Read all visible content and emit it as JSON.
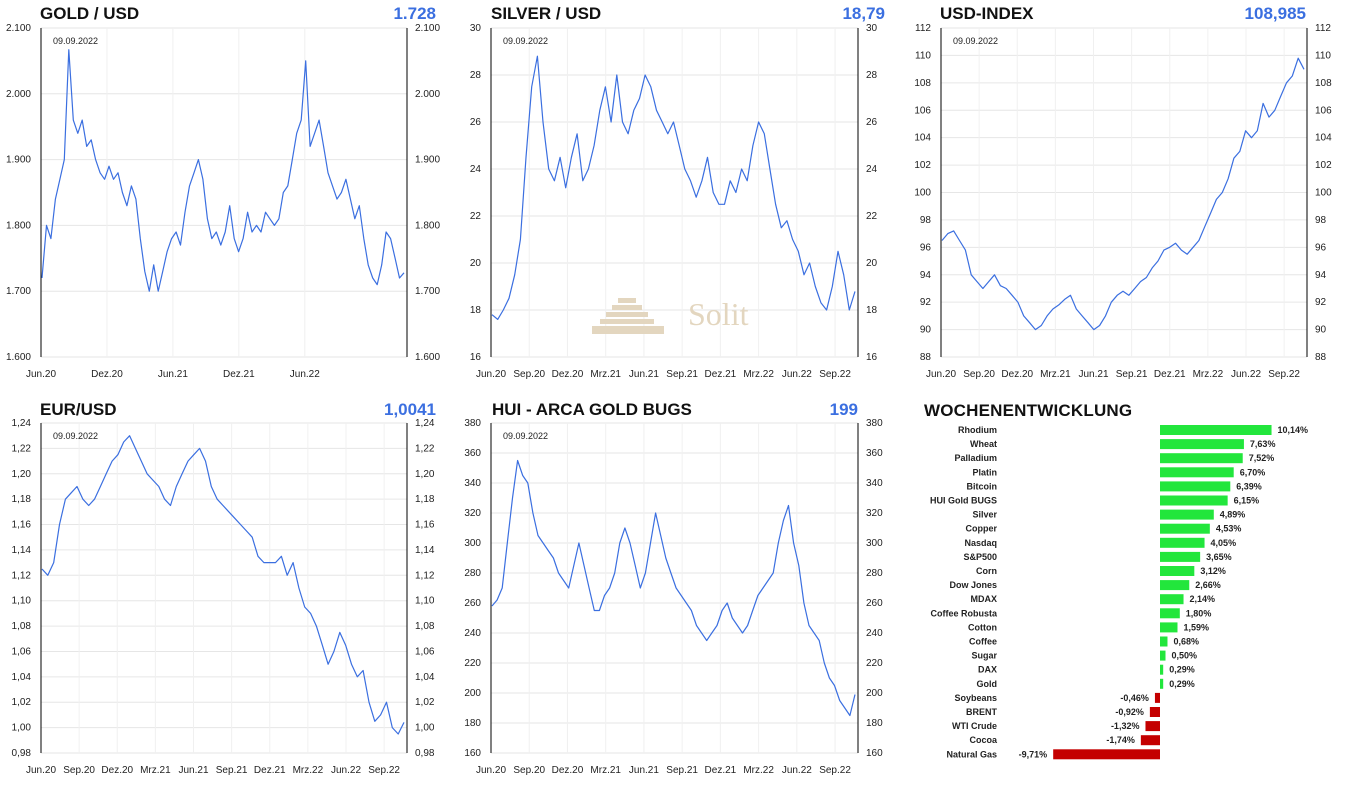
{
  "logo": {
    "text": "Solit"
  },
  "chart_data": [
    {
      "type": "line",
      "title": "GOLD / USD",
      "current_value": "1.728",
      "date": "09.09.2022",
      "y_ticks": [
        "2.100",
        "2.000",
        "1.900",
        "1.800",
        "1.700",
        "1.600"
      ],
      "ylim": [
        1600,
        2100
      ],
      "x_ticks": [
        "Jun.20",
        "Dez.20",
        "Jun.21",
        "Dez.21",
        "Jun.22"
      ],
      "series": [
        {
          "values": [
            1720,
            1800,
            1780,
            1840,
            1870,
            1900,
            2067,
            1960,
            1940,
            1960,
            1920,
            1930,
            1900,
            1880,
            1870,
            1890,
            1870,
            1880,
            1850,
            1830,
            1860,
            1840,
            1780,
            1730,
            1700,
            1740,
            1700,
            1730,
            1760,
            1780,
            1790,
            1770,
            1820,
            1860,
            1880,
            1900,
            1870,
            1810,
            1780,
            1790,
            1770,
            1790,
            1830,
            1780,
            1760,
            1780,
            1820,
            1790,
            1800,
            1790,
            1820,
            1810,
            1800,
            1810,
            1850,
            1860,
            1900,
            1940,
            1960,
            2050,
            1920,
            1940,
            1960,
            1920,
            1880,
            1860,
            1840,
            1850,
            1870,
            1840,
            1810,
            1830,
            1780,
            1740,
            1720,
            1710,
            1740,
            1790,
            1780,
            1750,
            1720,
            1728
          ]
        }
      ],
      "grid": true
    },
    {
      "type": "line",
      "title": "SILVER / USD",
      "current_value": "18,79",
      "date": "09.09.2022",
      "y_ticks": [
        "30",
        "28",
        "26",
        "24",
        "22",
        "20",
        "18",
        "16"
      ],
      "ylim": [
        16,
        30
      ],
      "x_ticks": [
        "Jun.20",
        "Sep.20",
        "Dez.20",
        "Mrz.21",
        "Jun.21",
        "Sep.21",
        "Dez.21",
        "Mrz.22",
        "Jun.22",
        "Sep.22"
      ],
      "series": [
        {
          "values": [
            17.8,
            17.6,
            18.0,
            18.5,
            19.5,
            21.0,
            24.5,
            27.5,
            28.8,
            26.0,
            24.0,
            23.5,
            24.5,
            23.2,
            24.5,
            25.5,
            23.5,
            24.0,
            25.0,
            26.5,
            27.5,
            26.0,
            28.0,
            26.0,
            25.5,
            26.5,
            27.0,
            28.0,
            27.5,
            26.5,
            26.0,
            25.5,
            26.0,
            25.0,
            24.0,
            23.5,
            22.8,
            23.5,
            24.5,
            23.0,
            22.5,
            22.5,
            23.5,
            23.0,
            24.0,
            23.5,
            25.0,
            26.0,
            25.5,
            24.0,
            22.5,
            21.5,
            21.8,
            21.0,
            20.5,
            19.5,
            20.0,
            19.0,
            18.3,
            18.0,
            19.0,
            20.5,
            19.5,
            18.0,
            18.79
          ]
        }
      ],
      "grid": true
    },
    {
      "type": "line",
      "title": "USD-INDEX",
      "current_value": "108,985",
      "date": "09.09.2022",
      "y_ticks": [
        "112",
        "110",
        "108",
        "106",
        "104",
        "102",
        "100",
        "98",
        "96",
        "94",
        "92",
        "90",
        "88"
      ],
      "ylim": [
        88,
        112
      ],
      "x_ticks": [
        "Jun.20",
        "Sep.20",
        "Dez.20",
        "Mrz.21",
        "Jun.21",
        "Sep.21",
        "Dez.21",
        "Mrz.22",
        "Jun.22",
        "Sep.22"
      ],
      "series": [
        {
          "values": [
            96.5,
            97.0,
            97.2,
            96.5,
            95.8,
            94.0,
            93.5,
            93.0,
            93.5,
            94.0,
            93.2,
            93.0,
            92.5,
            92.0,
            91.0,
            90.5,
            90.0,
            90.3,
            91.0,
            91.5,
            91.8,
            92.2,
            92.5,
            91.5,
            91.0,
            90.5,
            90.0,
            90.3,
            91.0,
            92.0,
            92.5,
            92.8,
            92.5,
            93.0,
            93.5,
            93.8,
            94.5,
            95.0,
            95.8,
            96.0,
            96.3,
            95.8,
            95.5,
            96.0,
            96.5,
            97.5,
            98.5,
            99.5,
            100.0,
            101.0,
            102.5,
            103.0,
            104.5,
            104.0,
            104.5,
            106.5,
            105.5,
            106.0,
            107.0,
            108.0,
            108.5,
            109.8,
            108.985
          ]
        }
      ],
      "grid": true
    },
    {
      "type": "line",
      "title": "EUR/USD",
      "current_value": "1,0041",
      "date": "09.09.2022",
      "y_ticks": [
        "1,24",
        "1,22",
        "1,20",
        "1,18",
        "1,16",
        "1,14",
        "1,12",
        "1,10",
        "1,08",
        "1,06",
        "1,04",
        "1,02",
        "1,00",
        "0,98"
      ],
      "ylim": [
        0.98,
        1.24
      ],
      "x_ticks": [
        "Jun.20",
        "Sep.20",
        "Dez.20",
        "Mrz.21",
        "Jun.21",
        "Sep.21",
        "Dez.21",
        "Mrz.22",
        "Jun.22",
        "Sep.22"
      ],
      "series": [
        {
          "values": [
            1.125,
            1.12,
            1.13,
            1.16,
            1.18,
            1.185,
            1.19,
            1.18,
            1.175,
            1.18,
            1.19,
            1.2,
            1.21,
            1.215,
            1.225,
            1.23,
            1.22,
            1.21,
            1.2,
            1.195,
            1.19,
            1.18,
            1.175,
            1.19,
            1.2,
            1.21,
            1.215,
            1.22,
            1.21,
            1.19,
            1.18,
            1.175,
            1.17,
            1.165,
            1.16,
            1.155,
            1.15,
            1.135,
            1.13,
            1.13,
            1.13,
            1.135,
            1.12,
            1.13,
            1.11,
            1.095,
            1.09,
            1.08,
            1.065,
            1.05,
            1.06,
            1.075,
            1.065,
            1.05,
            1.04,
            1.045,
            1.02,
            1.005,
            1.01,
            1.02,
            1.0,
            0.995,
            1.0041
          ]
        }
      ],
      "grid": true
    },
    {
      "type": "line",
      "title": "HUI - ARCA GOLD BUGS",
      "current_value": "199",
      "date": "09.09.2022",
      "y_ticks": [
        "380",
        "360",
        "340",
        "320",
        "300",
        "280",
        "260",
        "240",
        "220",
        "200",
        "180",
        "160"
      ],
      "ylim": [
        160,
        380
      ],
      "x_ticks": [
        "Jun.20",
        "Sep.20",
        "Dez.20",
        "Mrz.21",
        "Jun.21",
        "Sep.21",
        "Dez.21",
        "Mrz.22",
        "Jun.22",
        "Sep.22"
      ],
      "series": [
        {
          "values": [
            258,
            262,
            270,
            300,
            330,
            355,
            345,
            340,
            320,
            305,
            300,
            295,
            290,
            280,
            275,
            270,
            285,
            300,
            285,
            270,
            255,
            255,
            265,
            270,
            280,
            300,
            310,
            300,
            285,
            270,
            280,
            300,
            320,
            305,
            290,
            280,
            270,
            265,
            260,
            255,
            245,
            240,
            235,
            240,
            245,
            255,
            260,
            250,
            245,
            240,
            245,
            255,
            265,
            270,
            275,
            280,
            300,
            315,
            325,
            300,
            285,
            260,
            245,
            240,
            235,
            220,
            210,
            205,
            195,
            190,
            185,
            199
          ]
        }
      ],
      "grid": true
    },
    {
      "type": "bar",
      "title": "WOCHENENTWICKLUNG",
      "orientation": "horizontal",
      "categories": [
        "Rhodium",
        "Wheat",
        "Palladium",
        "Platin",
        "Bitcoin",
        "HUI Gold BUGS",
        "Silver",
        "Copper",
        "Nasdaq",
        "S&P500",
        "Corn",
        "Dow Jones",
        "MDAX",
        "Coffee Robusta",
        "Cotton",
        "Coffee",
        "Sugar",
        "DAX",
        "Gold",
        "Soybeans",
        "BRENT",
        "WTI Crude",
        "Cocoa",
        "Natural Gas"
      ],
      "values": [
        10.14,
        7.63,
        7.52,
        6.7,
        6.39,
        6.15,
        4.89,
        4.53,
        4.05,
        3.65,
        3.12,
        2.66,
        2.14,
        1.8,
        1.59,
        0.68,
        0.5,
        0.29,
        0.29,
        -0.46,
        -0.92,
        -1.32,
        -1.74,
        -9.71
      ],
      "value_labels": [
        "10,14%",
        "7,63%",
        "7,52%",
        "6,70%",
        "6,39%",
        "6,15%",
        "4,89%",
        "4,53%",
        "4,05%",
        "3,65%",
        "3,12%",
        "2,66%",
        "2,14%",
        "1,80%",
        "1,59%",
        "0,68%",
        "0,50%",
        "0,29%",
        "0,29%",
        "-0,46%",
        "-0,92%",
        "-1,32%",
        "-1,74%",
        "-9,71%"
      ],
      "colors": {
        "positive": "#22e63c",
        "negative": "#c40000"
      }
    }
  ]
}
